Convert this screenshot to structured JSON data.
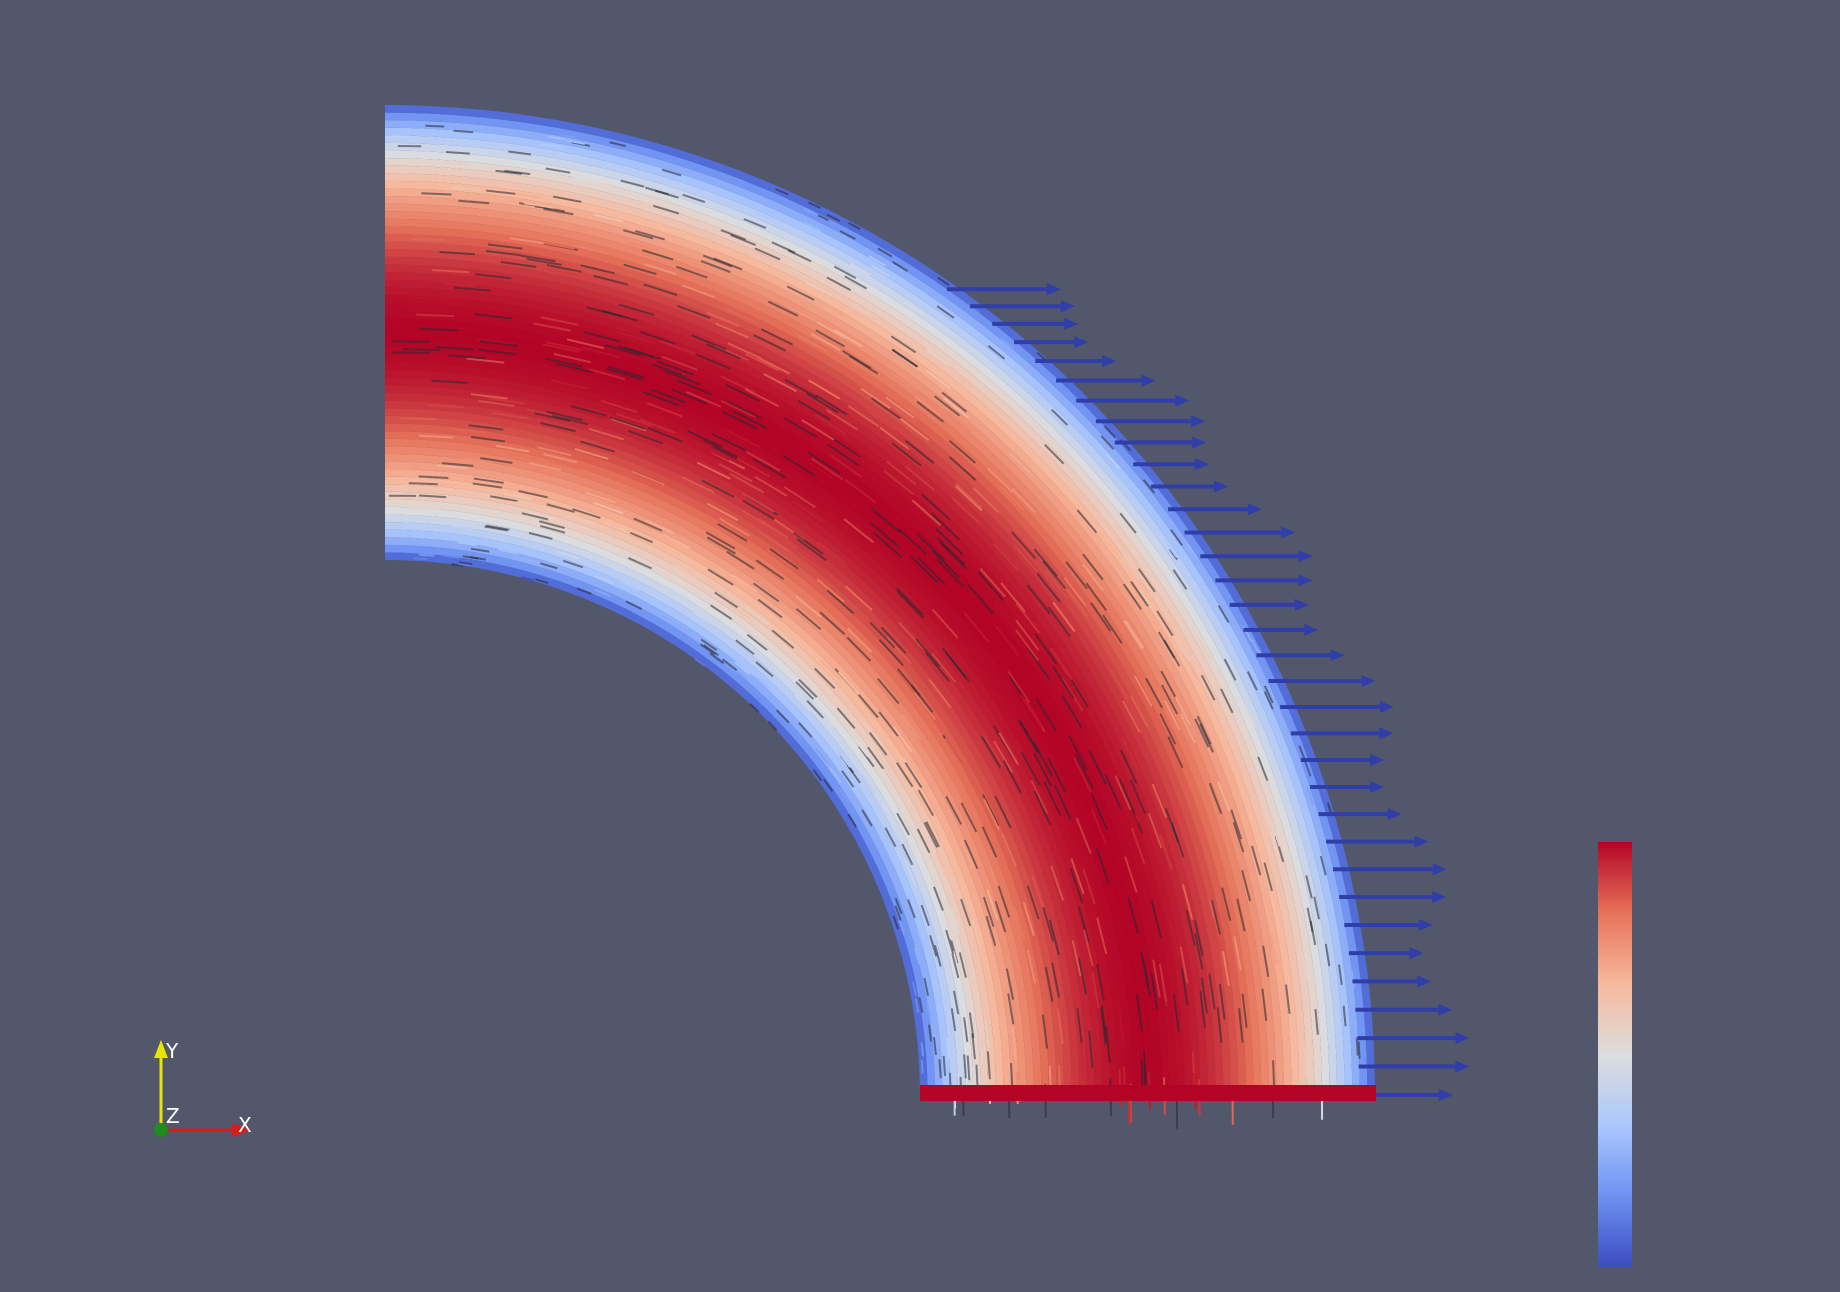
{
  "scene": {
    "background_color": "#52576b",
    "colormap": [
      "#3b4cc0",
      "#6f92f3",
      "#aac7fd",
      "#dddddd",
      "#f7b89c",
      "#e7745b",
      "#b40426"
    ],
    "glyph_color_low": "#3b4cc0",
    "glyph_color_high": "#b40426"
  },
  "orientation_axes": {
    "x_label": "X",
    "y_label": "Y",
    "z_label": "Z",
    "x_color": "#d21e1e",
    "y_color": "#e6e600",
    "z_color": "#1e8c1e"
  },
  "color_legend": {
    "title": "",
    "orientation": "vertical",
    "placement": "bottom-right"
  }
}
